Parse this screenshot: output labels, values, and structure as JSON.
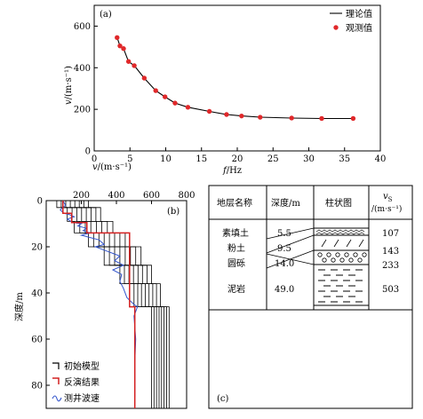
{
  "chart_data": [
    {
      "id": "a",
      "type": "line",
      "panel_label": "(a)",
      "xlabel_var": "f",
      "xlabel_unit": "/Hz",
      "ylabel_var": "v",
      "ylabel_unit": "/(m·s⁻¹)",
      "xlim": [
        0,
        40
      ],
      "ylim": [
        0,
        700
      ],
      "xticks": [
        "0",
        "5",
        "10",
        "15",
        "20",
        "25",
        "30",
        "35",
        "40"
      ],
      "yticks": [
        "0",
        "200",
        "400",
        "600"
      ],
      "legend": [
        "理论值",
        "观测值"
      ],
      "legend_position": "top-right",
      "grid": false,
      "series": [
        {
          "name": "理论值",
          "style": "line",
          "x": [
            3.2,
            3.6,
            4.1,
            4.8,
            5.6,
            7.0,
            8.6,
            9.9,
            11.3,
            13.1,
            16.1,
            18.5,
            20.6,
            23.2,
            27.6,
            31.8,
            36.2
          ],
          "y": [
            545,
            505,
            492,
            430,
            410,
            350,
            290,
            260,
            230,
            210,
            190,
            175,
            168,
            162,
            158,
            156,
            156
          ]
        },
        {
          "name": "观测值",
          "style": "scatter",
          "x": [
            3.2,
            3.6,
            4.1,
            4.8,
            5.6,
            7.0,
            8.6,
            9.9,
            11.3,
            13.1,
            16.1,
            18.5,
            20.6,
            23.2,
            27.6,
            31.8,
            36.2
          ],
          "y": [
            545,
            505,
            492,
            430,
            410,
            350,
            290,
            260,
            230,
            210,
            190,
            175,
            168,
            162,
            158,
            156,
            156
          ]
        }
      ]
    },
    {
      "id": "b",
      "type": "line",
      "panel_label": "(b)",
      "xlabel_var": "v",
      "xlabel_unit": "/(m·s⁻¹)",
      "ylabel": "深度/m",
      "xlim": [
        0,
        800
      ],
      "ylim": [
        0,
        90
      ],
      "xticks": [
        "0",
        "200",
        "400",
        "600",
        "800"
      ],
      "yticks": [
        "0",
        "20",
        "40",
        "60",
        "80"
      ],
      "legend": [
        "初始模型",
        "反演结果",
        "测井波速"
      ],
      "legend_position": "bottom-left",
      "series": [
        {
          "name": "初始模型",
          "color": "#000000",
          "v": [
            [
              60,
              240
            ],
            [
              120,
              310
            ],
            [
              160,
              380
            ],
            [
              240,
              450
            ],
            [
              330,
              540
            ],
            [
              420,
              600
            ],
            [
              500,
              650
            ],
            [
              600,
              700
            ]
          ],
          "layers": [
            3,
            9,
            14,
            20,
            28,
            36,
            46,
            90
          ]
        },
        {
          "name": "反演结果",
          "color": "#d42020",
          "v": [
            95,
            145,
            232,
            475,
            505
          ],
          "depth": [
            5.5,
            9.5,
            14.0,
            46.0,
            90
          ]
        },
        {
          "name": "测井波速",
          "color": "#3355cc",
          "profile": [
            [
              0,
              95
            ],
            [
              2,
              110
            ],
            [
              4,
              80
            ],
            [
              5.5,
              100
            ],
            [
              6,
              130
            ],
            [
              7,
              160
            ],
            [
              8,
              120
            ],
            [
              9.5,
              150
            ],
            [
              10,
              200
            ],
            [
              11,
              180
            ],
            [
              12,
              230
            ],
            [
              13,
              210
            ],
            [
              14,
              250
            ],
            [
              15,
              200
            ],
            [
              17,
              300
            ],
            [
              19,
              330
            ],
            [
              20,
              280
            ],
            [
              22,
              350
            ],
            [
              24,
              420
            ],
            [
              26,
              390
            ],
            [
              28,
              440
            ],
            [
              30,
              380
            ],
            [
              32,
              430
            ],
            [
              35,
              420
            ],
            [
              38,
              440
            ],
            [
              42,
              460
            ],
            [
              45,
              500
            ],
            [
              46,
              520
            ],
            [
              50,
              500
            ],
            [
              60,
              510
            ],
            [
              70,
              505
            ],
            [
              85,
              505
            ]
          ]
        }
      ]
    },
    {
      "id": "c",
      "type": "table",
      "panel_label": "(c)",
      "columns": [
        "地层名称",
        "深度/m",
        "柱状图"
      ],
      "vs_header": {
        "sym": "v",
        "sub": "S",
        "unit": "/(m·s⁻¹)"
      },
      "rows": [
        {
          "name": "素填土",
          "depth": "5.5",
          "vs": "107",
          "pattern": "fill"
        },
        {
          "name": "粉土",
          "depth": "9.5",
          "vs": "143",
          "pattern": "silt"
        },
        {
          "name": "圆砾",
          "depth": "14.0",
          "vs": "233",
          "pattern": "gravel"
        },
        {
          "name": "泥岩",
          "depth": "49.0",
          "vs": "503",
          "pattern": "mudstone"
        }
      ]
    }
  ]
}
